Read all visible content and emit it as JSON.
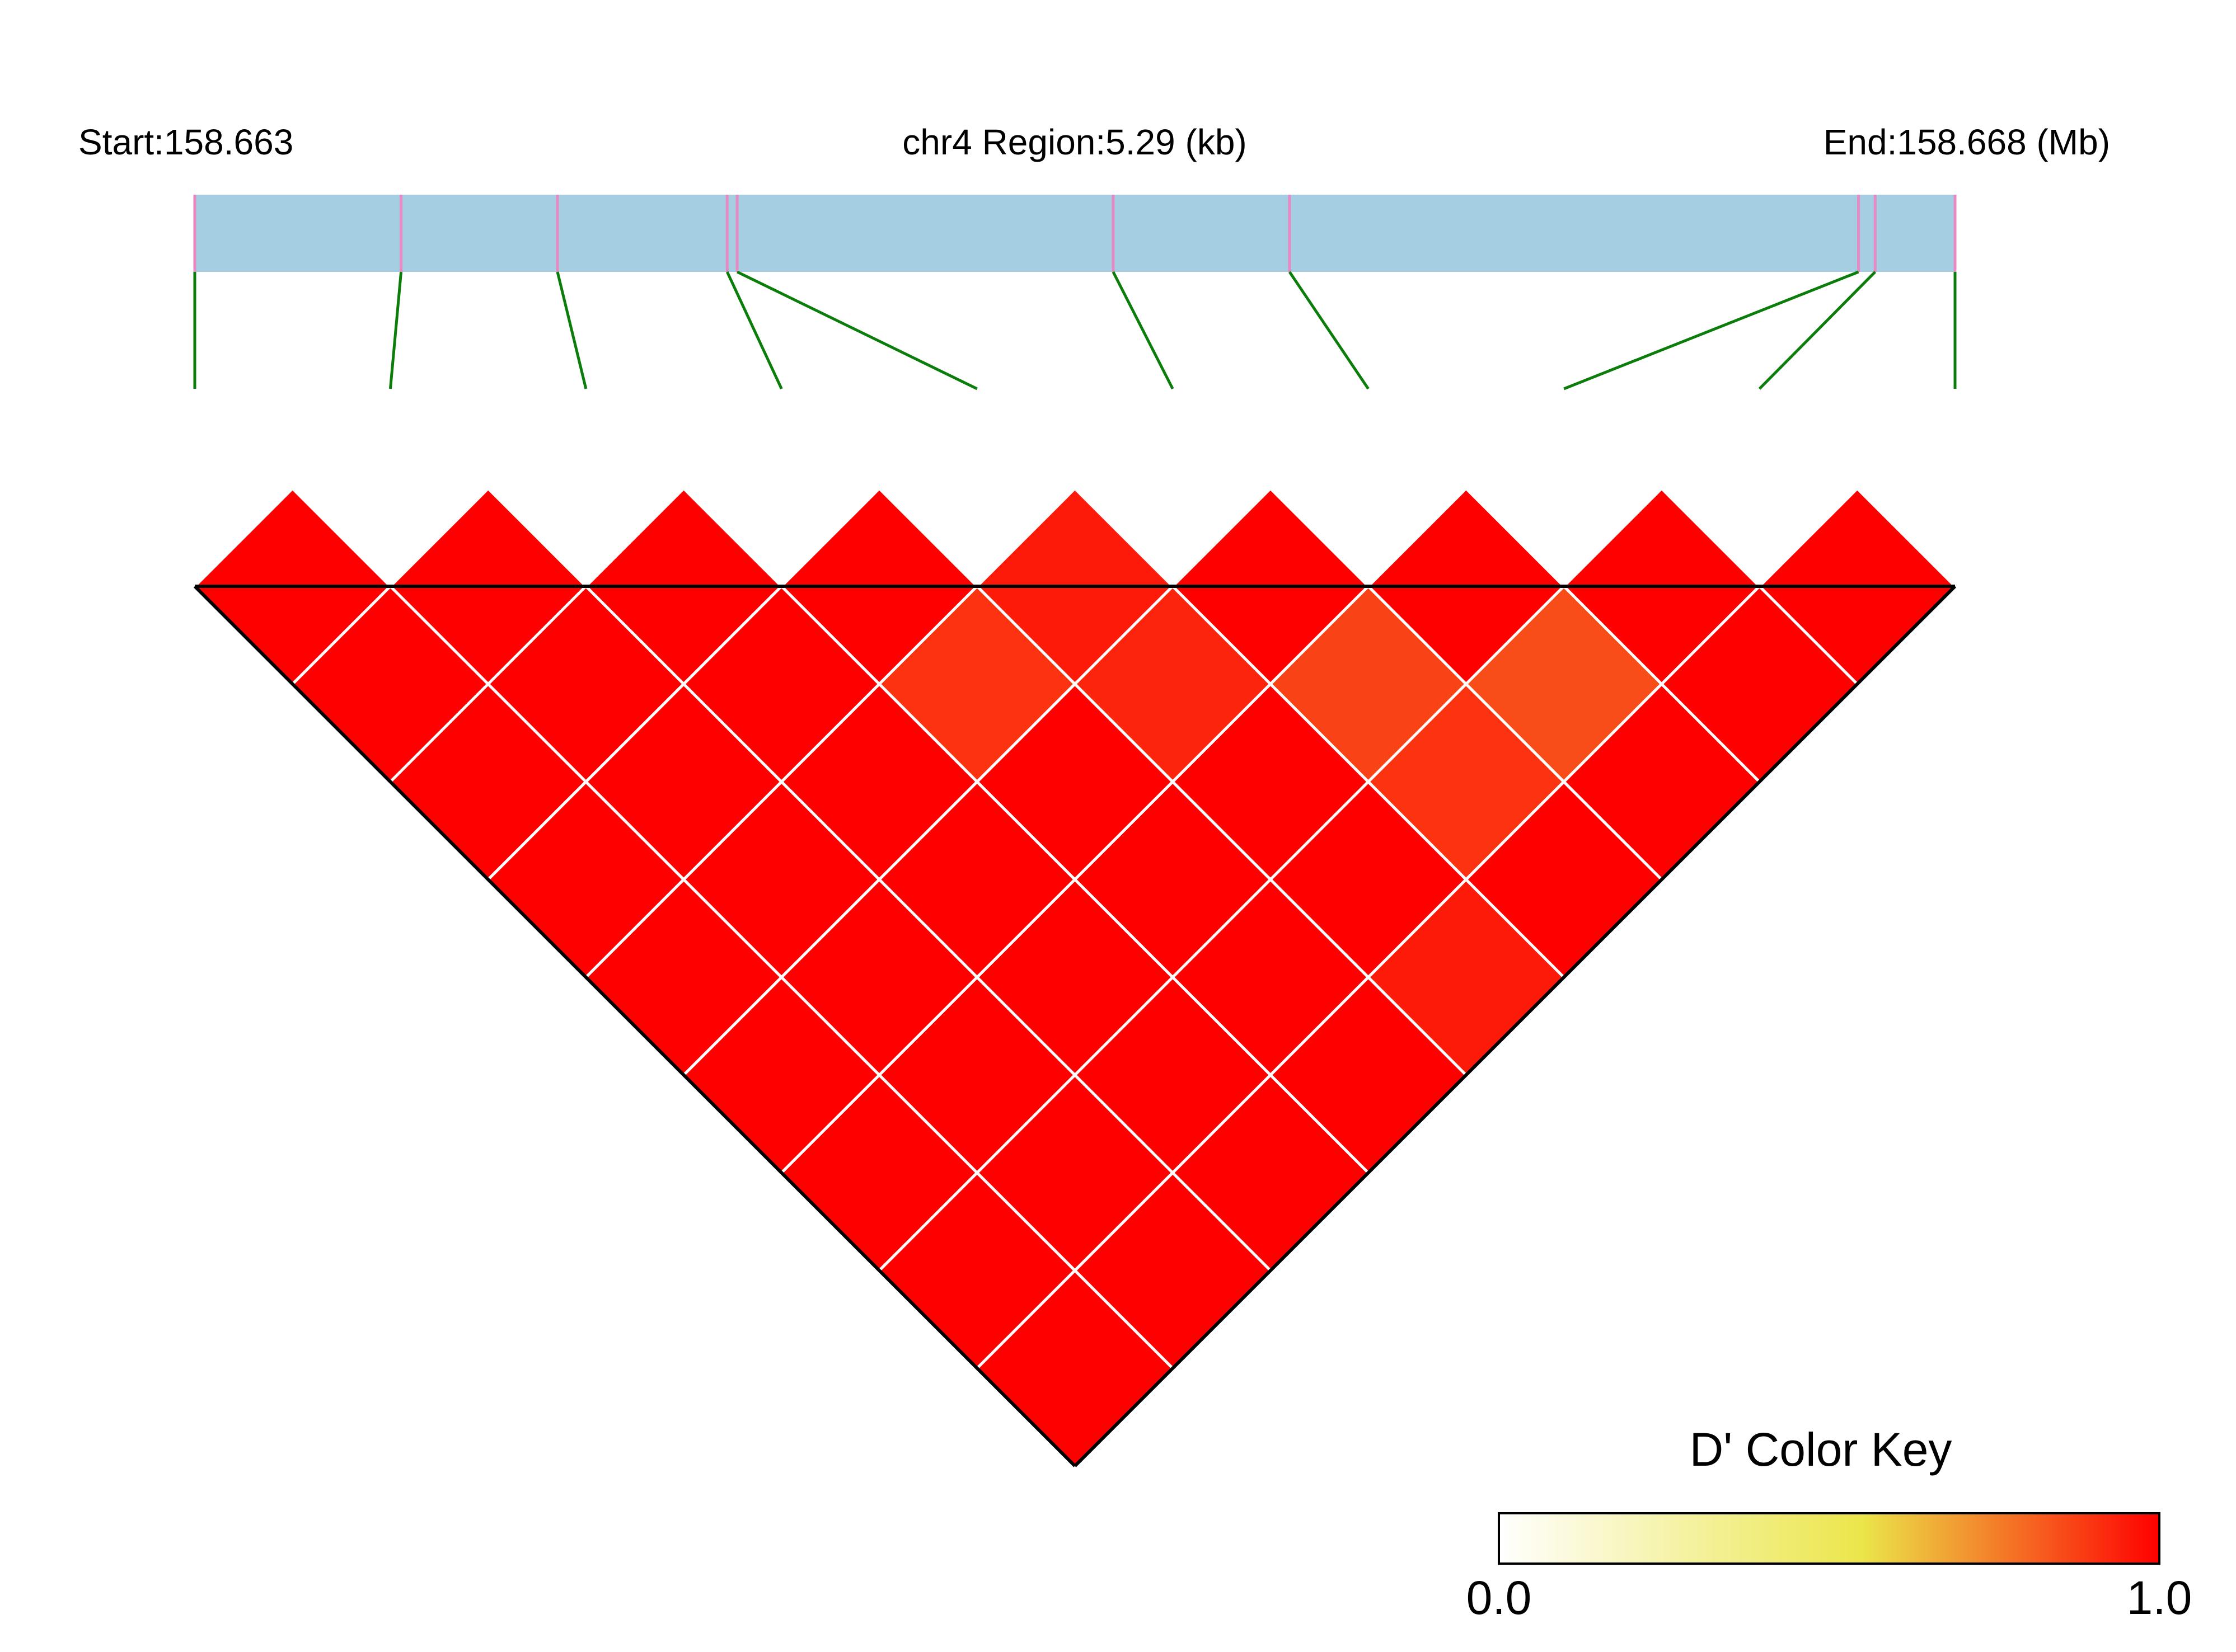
{
  "header": {
    "start_label": "Start:158.663",
    "region_label": "chr4 Region:5.29 (kb)",
    "end_label": "End:158.668 (Mb)"
  },
  "colors": {
    "region_bar": "#a6cee3",
    "snp_tick": "#e78ac3",
    "connector": "#0a7d0a",
    "cell_border": "#ffffff",
    "outline": "#000000",
    "key_low": "#ffffff",
    "key_mid": "#ebe64a",
    "key_high": "#ff0000"
  },
  "chart_data": {
    "type": "heatmap",
    "measure": "D'",
    "region": {
      "chromosome": "chr4",
      "start_mb": 158.663,
      "end_mb": 158.668,
      "length_kb": 5.29
    },
    "snp_positions_kb": [
      0.0,
      0.62,
      1.09,
      1.6,
      1.63,
      2.76,
      3.29,
      5.0,
      5.05,
      5.29
    ],
    "dprime_matrix": [
      [
        null,
        1.0,
        1.0,
        1.0,
        1.0,
        1.0,
        1.0,
        1.0,
        1.0,
        1.0
      ],
      [
        1.0,
        null,
        1.0,
        1.0,
        1.0,
        1.0,
        1.0,
        1.0,
        1.0,
        1.0
      ],
      [
        1.0,
        1.0,
        null,
        1.0,
        1.0,
        1.0,
        1.0,
        1.0,
        1.0,
        1.0
      ],
      [
        1.0,
        1.0,
        1.0,
        null,
        1.0,
        0.9,
        1.0,
        1.0,
        1.0,
        1.0
      ],
      [
        1.0,
        1.0,
        1.0,
        1.0,
        null,
        0.95,
        0.93,
        1.0,
        1.0,
        0.95
      ],
      [
        1.0,
        1.0,
        1.0,
        0.9,
        0.95,
        null,
        1.0,
        0.87,
        0.9,
        1.0
      ],
      [
        1.0,
        1.0,
        1.0,
        1.0,
        0.93,
        1.0,
        null,
        1.0,
        0.85,
        1.0
      ],
      [
        1.0,
        1.0,
        1.0,
        1.0,
        1.0,
        0.87,
        1.0,
        null,
        1.0,
        1.0
      ],
      [
        1.0,
        1.0,
        1.0,
        1.0,
        1.0,
        0.9,
        0.85,
        1.0,
        null,
        1.0
      ],
      [
        1.0,
        1.0,
        1.0,
        1.0,
        0.95,
        1.0,
        1.0,
        1.0,
        1.0,
        null
      ]
    ],
    "color_key": {
      "title": "D' Color Key",
      "min_label": "0.0",
      "max_label": "1.0",
      "range": [
        0.0,
        1.0
      ]
    }
  }
}
